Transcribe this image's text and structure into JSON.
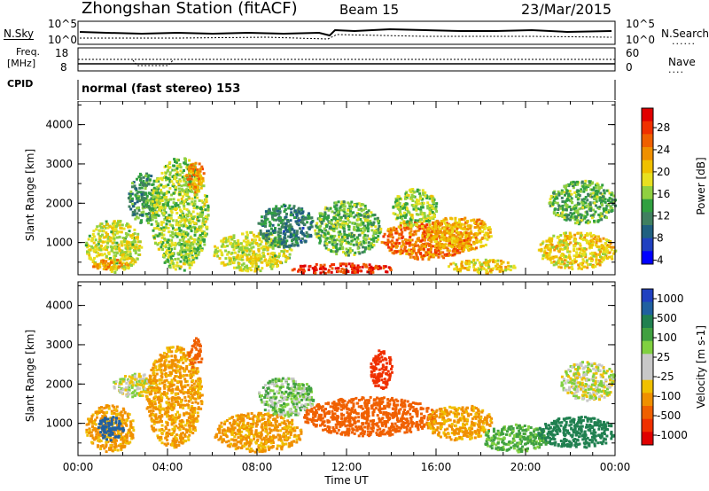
{
  "header": {
    "title": "Zhongshan Station (fitACF)",
    "beam": "Beam 15",
    "date": "23/Mar/2015"
  },
  "top_panels": {
    "nsky_label": "N.Sky",
    "nsky_ticks": [
      "10^5",
      "10^0"
    ],
    "nsearch_label": "N.Search",
    "nsearch_ticks": [
      "10^5",
      "10^0"
    ],
    "freq_label": "Freq.",
    "freq_unit": "[MHz]",
    "freq_ticks": [
      "18",
      "8"
    ],
    "nave_label": "Nave",
    "nave_ticks": [
      "60",
      "0"
    ],
    "cpid_label": "CPID",
    "cpid_text": "normal (fast stereo) 153"
  },
  "chart_data": [
    {
      "type": "heatmap",
      "name": "power-panel",
      "title": "",
      "xlabel": "Time UT",
      "ylabel": "Slant Range [km]",
      "xlim": [
        0,
        24
      ],
      "ylim": [
        180,
        4600
      ],
      "x_ticks": [
        "00:00",
        "04:00",
        "08:00",
        "12:00",
        "16:00",
        "20:00",
        "00:00"
      ],
      "y_ticks": [
        "1000",
        "2000",
        "3000",
        "4000"
      ],
      "colorbar": {
        "label": "Power [dB]",
        "ticks": [
          "28",
          "24",
          "20",
          "16",
          "12",
          "8",
          "4"
        ],
        "colors": [
          "#e00000",
          "#f03000",
          "#f06000",
          "#f09000",
          "#f0c000",
          "#e8e020",
          "#90d040",
          "#30a040",
          "#408060",
          "#206080",
          "#2040c0",
          "#0000ff"
        ]
      },
      "blobs": [
        {
          "t0": 0.3,
          "t1": 2.8,
          "r0": 250,
          "r1": 1600,
          "v": 16
        },
        {
          "t0": 0.5,
          "t1": 2.2,
          "r0": 350,
          "r1": 600,
          "v": 22
        },
        {
          "t0": 2.2,
          "t1": 3.6,
          "r0": 1500,
          "r1": 2800,
          "v": 10
        },
        {
          "t0": 3.2,
          "t1": 5.8,
          "r0": 300,
          "r1": 3200,
          "v": 14
        },
        {
          "t0": 4.8,
          "t1": 5.6,
          "r0": 2300,
          "r1": 3100,
          "v": 22
        },
        {
          "t0": 6.0,
          "t1": 9.5,
          "r0": 300,
          "r1": 1300,
          "v": 16
        },
        {
          "t0": 8.0,
          "t1": 10.5,
          "r0": 900,
          "r1": 2000,
          "v": 8
        },
        {
          "t0": 9.5,
          "t1": 14.0,
          "r0": 200,
          "r1": 500,
          "v": 28
        },
        {
          "t0": 10.5,
          "t1": 13.5,
          "r0": 700,
          "r1": 2100,
          "v": 12
        },
        {
          "t0": 13.5,
          "t1": 17.5,
          "r0": 600,
          "r1": 1600,
          "v": 24
        },
        {
          "t0": 14.0,
          "t1": 16.0,
          "r0": 1400,
          "r1": 2400,
          "v": 14
        },
        {
          "t0": 15.5,
          "t1": 18.5,
          "r0": 800,
          "r1": 1700,
          "v": 20
        },
        {
          "t0": 16.5,
          "t1": 19.5,
          "r0": 250,
          "r1": 600,
          "v": 18
        },
        {
          "t0": 20.5,
          "t1": 24.0,
          "r0": 350,
          "r1": 1300,
          "v": 18
        },
        {
          "t0": 21.0,
          "t1": 24.0,
          "r0": 1500,
          "r1": 2600,
          "v": 12
        }
      ]
    },
    {
      "type": "heatmap",
      "name": "velocity-panel",
      "title": "",
      "xlabel": "Time UT",
      "ylabel": "Slant Range [km]",
      "xlim": [
        0,
        24
      ],
      "ylim": [
        180,
        4600
      ],
      "x_ticks": [
        "00:00",
        "04:00",
        "08:00",
        "12:00",
        "16:00",
        "20:00",
        "00:00"
      ],
      "y_ticks": [
        "1000",
        "2000",
        "3000",
        "4000"
      ],
      "colorbar": {
        "label": "Velocity [m s-1]",
        "ticks": [
          "1000",
          "500",
          "100",
          "25",
          "-25",
          "-100",
          "-500",
          "-1000"
        ],
        "colors": [
          "#2040c0",
          "#2060a0",
          "#208050",
          "#40a040",
          "#80d040",
          "#c8c8c8",
          "#c8c8c8",
          "#f0c000",
          "#f09000",
          "#f06000",
          "#f03000",
          "#e00000"
        ]
      },
      "blobs": [
        {
          "t0": 0.3,
          "t1": 2.5,
          "r0": 300,
          "r1": 1500,
          "v": -100
        },
        {
          "t0": 0.8,
          "t1": 2.0,
          "r0": 600,
          "r1": 1200,
          "v": 500
        },
        {
          "t0": 1.5,
          "t1": 3.5,
          "r0": 1700,
          "r1": 2300,
          "v": 0
        },
        {
          "t0": 3.0,
          "t1": 5.5,
          "r0": 400,
          "r1": 3000,
          "v": -100
        },
        {
          "t0": 4.9,
          "t1": 5.5,
          "r0": 2400,
          "r1": 3200,
          "v": -300
        },
        {
          "t0": 6.0,
          "t1": 10.0,
          "r0": 300,
          "r1": 1300,
          "v": -100
        },
        {
          "t0": 8.0,
          "t1": 10.5,
          "r0": 1200,
          "r1": 2200,
          "v": 50
        },
        {
          "t0": 10.0,
          "t1": 16.0,
          "r0": 700,
          "r1": 1700,
          "v": -300
        },
        {
          "t0": 13.0,
          "t1": 14.0,
          "r0": 1900,
          "r1": 2900,
          "v": -500
        },
        {
          "t0": 15.5,
          "t1": 18.5,
          "r0": 600,
          "r1": 1500,
          "v": -100
        },
        {
          "t0": 18.0,
          "t1": 21.0,
          "r0": 300,
          "r1": 1000,
          "v": 100
        },
        {
          "t0": 20.5,
          "t1": 24.0,
          "r0": 400,
          "r1": 1200,
          "v": 300
        },
        {
          "t0": 21.5,
          "t1": 24.0,
          "r0": 1600,
          "r1": 2600,
          "v": 0
        }
      ]
    }
  ]
}
